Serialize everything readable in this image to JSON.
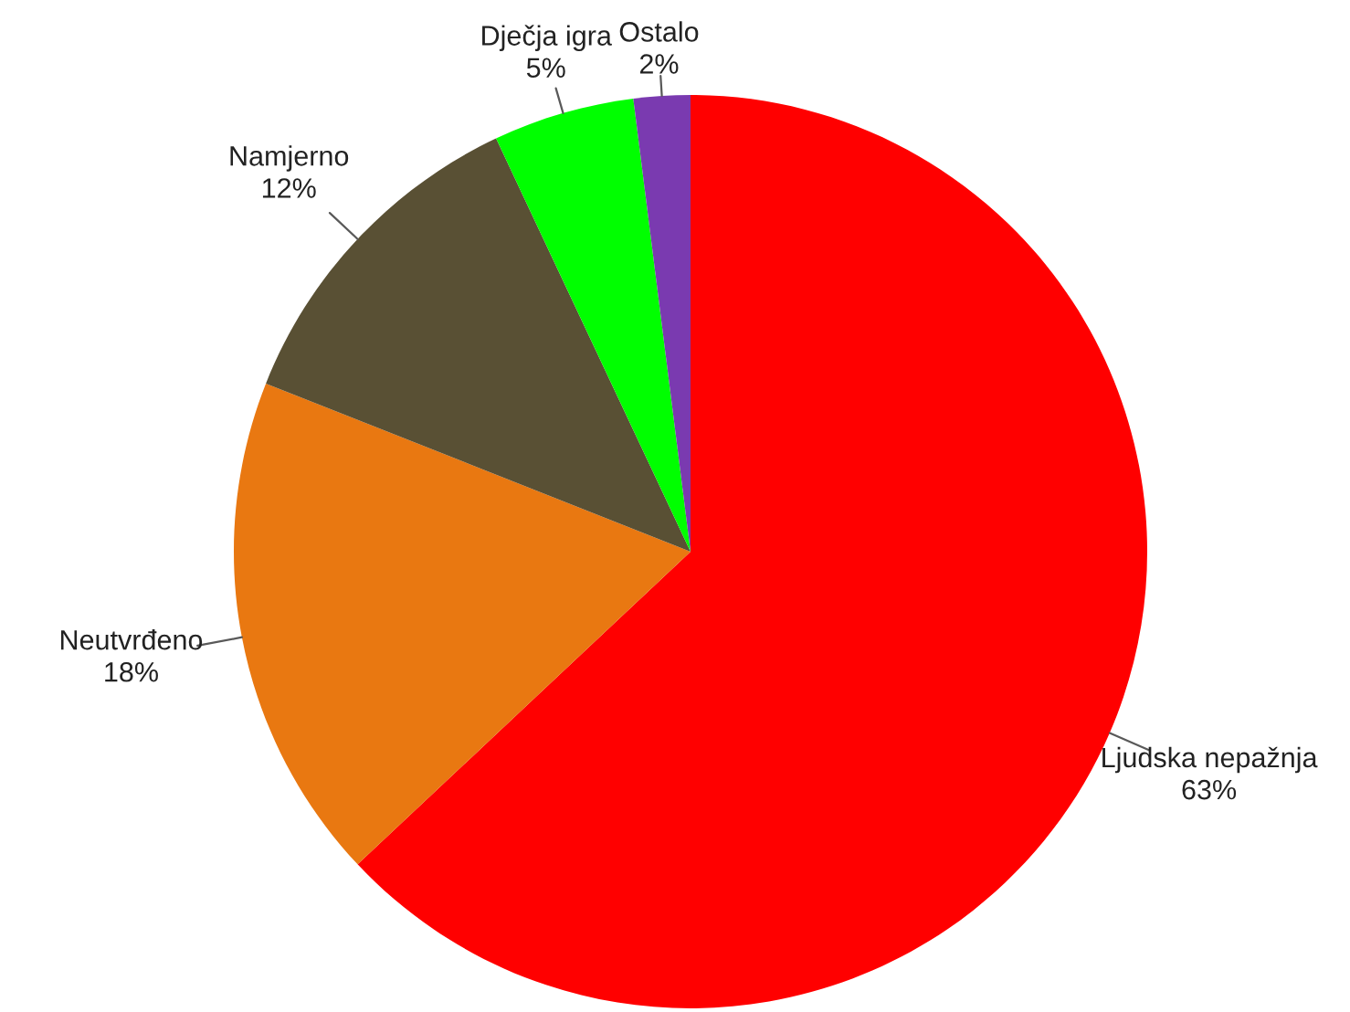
{
  "chart_data": {
    "type": "pie",
    "categories": [
      "Ljudska nepažnja",
      "Neutvrđeno",
      "Namjerno",
      "Dječja igra",
      "Ostalo"
    ],
    "values": [
      63,
      18,
      12,
      5,
      2
    ],
    "colors": [
      "#ff0000",
      "#e97811",
      "#595034",
      "#00ff00",
      "#7a3ab0"
    ],
    "value_labels": [
      "63%",
      "18%",
      "12%",
      "5%",
      "2%"
    ],
    "legend": false
  }
}
